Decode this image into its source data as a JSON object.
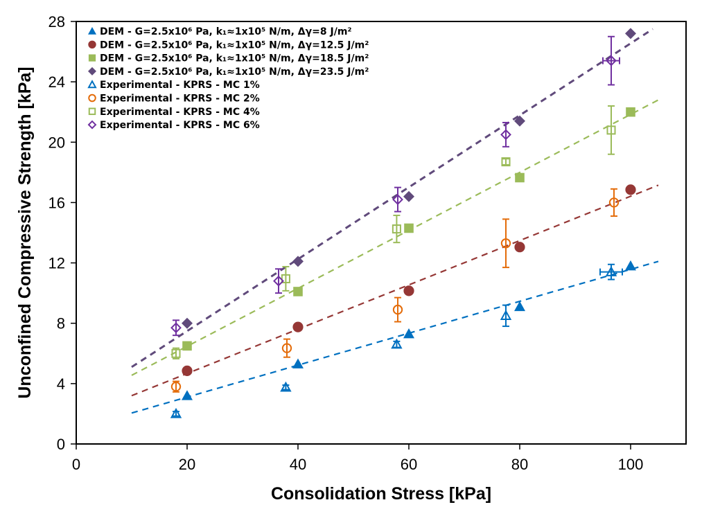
{
  "chart_data": {
    "type": "scatter",
    "title": "",
    "xlabel": "Consolidation Stress [kPa]",
    "ylabel": "Unconfined Compressive Strength [kPa]",
    "xlim": [
      0,
      110
    ],
    "ylim": [
      0,
      28
    ],
    "xticks": [
      0,
      20,
      40,
      60,
      80,
      100
    ],
    "yticks": [
      0,
      4,
      8,
      12,
      16,
      20,
      24,
      28
    ],
    "grid": false,
    "legend_position": "top-left",
    "series": [
      {
        "name": "DEM - G=2.5x10⁶ Pa, k₁≈1x10⁵ N/m,  Δγ=8 J/m²",
        "marker": "triangle",
        "filled": true,
        "color": "#0070C0",
        "x": [
          20,
          40,
          60,
          80,
          100
        ],
        "y": [
          3.2,
          5.3,
          7.3,
          9.1,
          11.8
        ]
      },
      {
        "name": "DEM - G=2.5x10⁶ Pa, k₁≈1x10⁵ N/m,  Δγ=12.5 J/m²",
        "marker": "circle",
        "filled": true,
        "color": "#953735",
        "x": [
          20,
          40,
          60,
          80,
          100
        ],
        "y": [
          4.85,
          7.75,
          10.15,
          13.05,
          16.85
        ]
      },
      {
        "name": "DEM - G=2.5x10⁶ Pa, k₁≈1x10⁵ N/m,  Δγ=18.5 J/m²",
        "marker": "square",
        "filled": true,
        "color": "#9BBB59",
        "x": [
          20,
          40,
          60,
          80,
          100
        ],
        "y": [
          6.5,
          10.1,
          14.3,
          17.65,
          22.0
        ]
      },
      {
        "name": "DEM - G=2.5x10⁶ Pa, k₁≈1x10⁵ N/m,  Δγ=23.5 J/m²",
        "marker": "diamond",
        "filled": true,
        "color": "#604A7B",
        "x": [
          20,
          40,
          60,
          80,
          100
        ],
        "y": [
          8.0,
          12.1,
          16.4,
          21.4,
          27.2
        ]
      },
      {
        "name": "Experimental - KPRS - MC 1%",
        "marker": "triangle",
        "filled": false,
        "color": "#0070C0",
        "x": [
          18,
          37.8,
          57.8,
          77.5,
          96.5
        ],
        "y": [
          2.0,
          3.75,
          6.6,
          8.5,
          11.4
        ],
        "yerr": [
          0.15,
          0.15,
          0.2,
          0.7,
          0.5
        ],
        "xerr": [
          0,
          0,
          0,
          0,
          2.0
        ]
      },
      {
        "name": "Experimental - KPRS - MC 2%",
        "marker": "circle",
        "filled": false,
        "color": "#E46C0A",
        "x": [
          18,
          38,
          58,
          77.5,
          97
        ],
        "y": [
          3.8,
          6.35,
          8.9,
          13.3,
          16.0
        ],
        "yerr": [
          0.35,
          0.6,
          0.8,
          1.6,
          0.9
        ],
        "xerr": [
          0,
          0,
          0,
          0,
          0
        ]
      },
      {
        "name": "Experimental - KPRS - MC 4%",
        "marker": "square",
        "filled": false,
        "color": "#9BBB59",
        "x": [
          18,
          37.8,
          57.8,
          77.5,
          96.5
        ],
        "y": [
          6.0,
          10.95,
          14.25,
          18.7,
          20.8
        ],
        "yerr": [
          0.35,
          0.8,
          0.9,
          0.2,
          1.6
        ],
        "xerr": [
          0,
          0,
          0,
          0,
          0
        ]
      },
      {
        "name": "Experimental - KPRS - MC 6%",
        "marker": "diamond",
        "filled": false,
        "color": "#7030A0",
        "x": [
          18,
          36.5,
          58,
          77.5,
          96.5
        ],
        "y": [
          7.7,
          10.8,
          16.2,
          20.5,
          25.4
        ],
        "yerr": [
          0.5,
          0.8,
          0.8,
          0.8,
          1.6
        ],
        "xerr": [
          0,
          0,
          0,
          0,
          1.5
        ]
      }
    ],
    "trendlines": [
      {
        "name": "trend-dem-8",
        "color": "#0070C0",
        "x": [
          10,
          105
        ],
        "y": [
          2.05,
          12.1
        ]
      },
      {
        "name": "trend-dem-12.5",
        "color": "#953735",
        "x": [
          10,
          105
        ],
        "y": [
          3.2,
          17.15
        ]
      },
      {
        "name": "trend-dem-18.5",
        "color": "#9BBB59",
        "x": [
          10,
          105
        ],
        "y": [
          4.55,
          22.8
        ]
      },
      {
        "name": "trend-dem-23.5",
        "color": "#604A7B",
        "x": [
          10,
          104
        ],
        "y": [
          5.1,
          27.5
        ]
      }
    ]
  }
}
